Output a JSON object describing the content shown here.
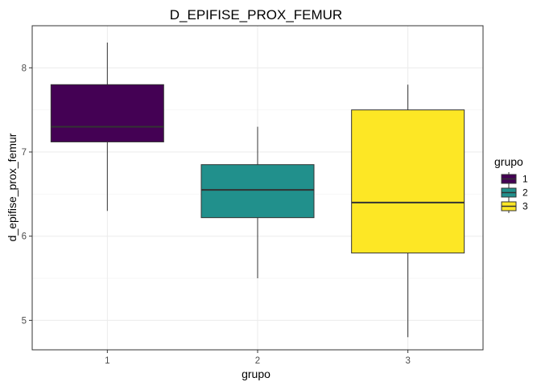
{
  "chart_data": {
    "type": "boxplot",
    "title": "D_EPIFISE_PROX_FEMUR",
    "xlabel": "grupo",
    "ylabel": "d_epifise_prox_femur",
    "categories": [
      "1",
      "2",
      "3"
    ],
    "ylim": [
      4.65,
      8.5
    ],
    "yticks": [
      5,
      6,
      7,
      8
    ],
    "grid": true,
    "legend": {
      "title": "grupo",
      "placement": "right",
      "entries": [
        "1",
        "2",
        "3"
      ]
    },
    "colors": [
      "#440154",
      "#21908C",
      "#FDE725"
    ],
    "boxes": [
      {
        "group": "1",
        "min": 6.3,
        "q1": 7.12,
        "median": 7.3,
        "q3": 7.8,
        "max": 8.3
      },
      {
        "group": "2",
        "min": 5.5,
        "q1": 6.22,
        "median": 6.55,
        "q3": 6.85,
        "max": 7.3
      },
      {
        "group": "3",
        "min": 4.8,
        "q1": 5.8,
        "median": 6.4,
        "q3": 7.5,
        "max": 7.8
      }
    ]
  }
}
